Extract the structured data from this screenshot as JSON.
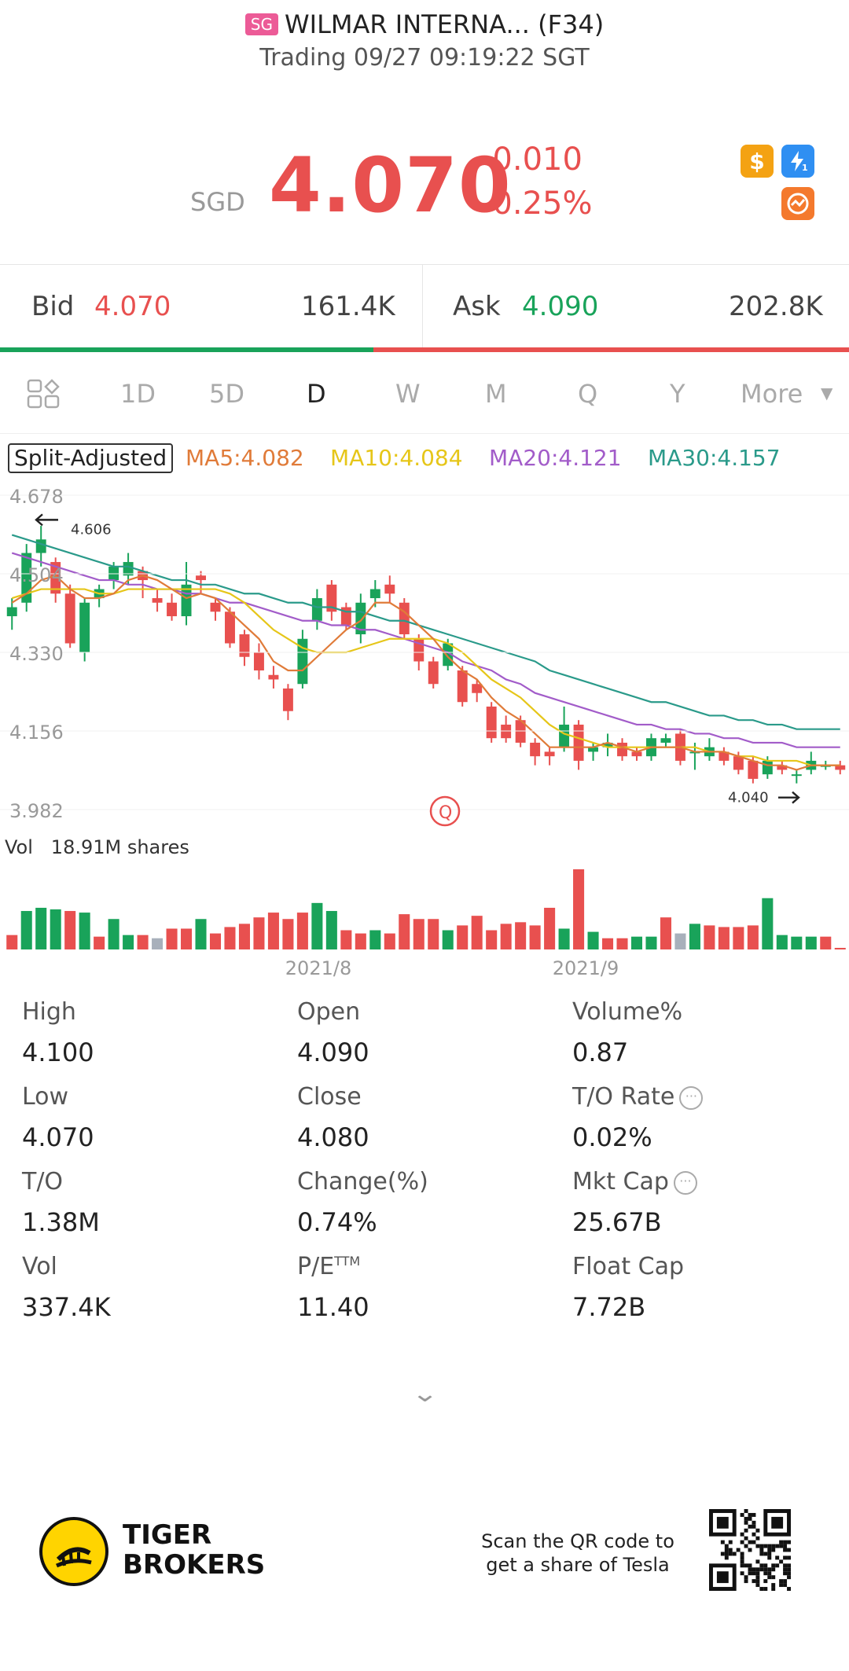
{
  "header": {
    "market_badge": "SG",
    "stock_name": "WILMAR INTERNA... (F34)",
    "status_line": "Trading 09/27 09:19:22 SGT"
  },
  "quote": {
    "currency": "SGD",
    "price": "4.070",
    "change": "-0.010",
    "change_pct": "-0.25%",
    "price_color": "#e8504f",
    "icons": [
      "dollar-icon",
      "lightning-icon",
      "trend-icon"
    ]
  },
  "bidask": {
    "bid_label": "Bid",
    "bid_price": "4.070",
    "bid_size": "161.4K",
    "ask_label": "Ask",
    "ask_price": "4.090",
    "ask_size": "202.8K",
    "bid_ratio": 0.44,
    "up_color": "#19a35a",
    "down_color": "#e8504f"
  },
  "tabs": {
    "items": [
      "1D",
      "5D",
      "D",
      "W",
      "M",
      "Q",
      "Y"
    ],
    "active": "D",
    "more_label": "More"
  },
  "indicators": {
    "split_adjusted": "Split-Adjusted",
    "ma5": "MA5:4.082",
    "ma10": "MA10:4.084",
    "ma20": "MA20:4.121",
    "ma30": "MA30:4.157",
    "ma5_color": "#e07b39",
    "ma10_color": "#e6c619",
    "ma20_color": "#a25cc9",
    "ma30_color": "#2a9a8a"
  },
  "chart_data": {
    "type": "candlestick",
    "y_ticks": [
      "4.678",
      "4.504",
      "4.330",
      "4.156",
      "3.982"
    ],
    "ylim": [
      3.982,
      4.678
    ],
    "x_ticks": [
      "2021/8",
      "2021/9"
    ],
    "high_marker": "4.606",
    "low_marker": "4.040",
    "candles": [
      {
        "o": 4.41,
        "c": 4.43,
        "h": 4.45,
        "l": 4.38
      },
      {
        "o": 4.44,
        "c": 4.55,
        "h": 4.57,
        "l": 4.42
      },
      {
        "o": 4.55,
        "c": 4.58,
        "h": 4.61,
        "l": 4.52
      },
      {
        "o": 4.53,
        "c": 4.46,
        "h": 4.54,
        "l": 4.44
      },
      {
        "o": 4.46,
        "c": 4.35,
        "h": 4.48,
        "l": 4.34
      },
      {
        "o": 4.33,
        "c": 4.44,
        "h": 4.45,
        "l": 4.31
      },
      {
        "o": 4.45,
        "c": 4.47,
        "h": 4.48,
        "l": 4.43
      },
      {
        "o": 4.49,
        "c": 4.52,
        "h": 4.53,
        "l": 4.47
      },
      {
        "o": 4.5,
        "c": 4.53,
        "h": 4.55,
        "l": 4.48
      },
      {
        "o": 4.51,
        "c": 4.49,
        "h": 4.52,
        "l": 4.45
      },
      {
        "o": 4.45,
        "c": 4.44,
        "h": 4.47,
        "l": 4.42
      },
      {
        "o": 4.44,
        "c": 4.41,
        "h": 4.46,
        "l": 4.4
      },
      {
        "o": 4.41,
        "c": 4.48,
        "h": 4.53,
        "l": 4.39
      },
      {
        "o": 4.5,
        "c": 4.49,
        "h": 4.51,
        "l": 4.46
      },
      {
        "o": 4.44,
        "c": 4.42,
        "h": 4.45,
        "l": 4.4
      },
      {
        "o": 4.42,
        "c": 4.35,
        "h": 4.43,
        "l": 4.34
      },
      {
        "o": 4.37,
        "c": 4.32,
        "h": 4.38,
        "l": 4.3
      },
      {
        "o": 4.33,
        "c": 4.29,
        "h": 4.35,
        "l": 4.27
      },
      {
        "o": 4.28,
        "c": 4.27,
        "h": 4.3,
        "l": 4.25
      },
      {
        "o": 4.25,
        "c": 4.2,
        "h": 4.26,
        "l": 4.18
      },
      {
        "o": 4.26,
        "c": 4.36,
        "h": 4.38,
        "l": 4.25
      },
      {
        "o": 4.4,
        "c": 4.45,
        "h": 4.47,
        "l": 4.38
      },
      {
        "o": 4.48,
        "c": 4.42,
        "h": 4.49,
        "l": 4.4
      },
      {
        "o": 4.43,
        "c": 4.39,
        "h": 4.44,
        "l": 4.38
      },
      {
        "o": 4.37,
        "c": 4.44,
        "h": 4.46,
        "l": 4.35
      },
      {
        "o": 4.45,
        "c": 4.47,
        "h": 4.49,
        "l": 4.43
      },
      {
        "o": 4.48,
        "c": 4.46,
        "h": 4.5,
        "l": 4.44
      },
      {
        "o": 4.44,
        "c": 4.37,
        "h": 4.45,
        "l": 4.36
      },
      {
        "o": 4.36,
        "c": 4.31,
        "h": 4.37,
        "l": 4.29
      },
      {
        "o": 4.31,
        "c": 4.26,
        "h": 4.32,
        "l": 4.25
      },
      {
        "o": 4.3,
        "c": 4.35,
        "h": 4.36,
        "l": 4.29
      },
      {
        "o": 4.29,
        "c": 4.22,
        "h": 4.3,
        "l": 4.21
      },
      {
        "o": 4.26,
        "c": 4.24,
        "h": 4.27,
        "l": 4.22
      },
      {
        "o": 4.21,
        "c": 4.14,
        "h": 4.22,
        "l": 4.13
      },
      {
        "o": 4.17,
        "c": 4.14,
        "h": 4.19,
        "l": 4.13
      },
      {
        "o": 4.18,
        "c": 4.13,
        "h": 4.19,
        "l": 4.12
      },
      {
        "o": 4.13,
        "c": 4.1,
        "h": 4.14,
        "l": 4.08
      },
      {
        "o": 4.11,
        "c": 4.1,
        "h": 4.12,
        "l": 4.08
      },
      {
        "o": 4.12,
        "c": 4.17,
        "h": 4.21,
        "l": 4.11
      },
      {
        "o": 4.17,
        "c": 4.09,
        "h": 4.18,
        "l": 4.07
      },
      {
        "o": 4.11,
        "c": 4.12,
        "h": 4.13,
        "l": 4.09
      },
      {
        "o": 4.12,
        "c": 4.13,
        "h": 4.15,
        "l": 4.1
      },
      {
        "o": 4.13,
        "c": 4.1,
        "h": 4.14,
        "l": 4.09
      },
      {
        "o": 4.11,
        "c": 4.1,
        "h": 4.12,
        "l": 4.09
      },
      {
        "o": 4.1,
        "c": 4.14,
        "h": 4.15,
        "l": 4.09
      },
      {
        "o": 4.13,
        "c": 4.14,
        "h": 4.15,
        "l": 4.12
      },
      {
        "o": 4.15,
        "c": 4.09,
        "h": 4.16,
        "l": 4.08
      },
      {
        "o": 4.11,
        "c": 4.11,
        "h": 4.13,
        "l": 4.07
      },
      {
        "o": 4.1,
        "c": 4.12,
        "h": 4.14,
        "l": 4.09
      },
      {
        "o": 4.11,
        "c": 4.09,
        "h": 4.12,
        "l": 4.08
      },
      {
        "o": 4.1,
        "c": 4.07,
        "h": 4.11,
        "l": 4.06
      },
      {
        "o": 4.09,
        "c": 4.05,
        "h": 4.1,
        "l": 4.04
      },
      {
        "o": 4.06,
        "c": 4.09,
        "h": 4.1,
        "l": 4.05
      },
      {
        "o": 4.08,
        "c": 4.07,
        "h": 4.09,
        "l": 4.06
      },
      {
        "o": 4.06,
        "c": 4.06,
        "h": 4.07,
        "l": 4.04
      },
      {
        "o": 4.07,
        "c": 4.09,
        "h": 4.11,
        "l": 4.06
      },
      {
        "o": 4.08,
        "c": 4.08,
        "h": 4.09,
        "l": 4.07
      },
      {
        "o": 4.08,
        "c": 4.07,
        "h": 4.09,
        "l": 4.06
      }
    ],
    "ma5": [
      4.44,
      4.46,
      4.49,
      4.5,
      4.47,
      4.45,
      4.45,
      4.46,
      4.49,
      4.5,
      4.49,
      4.47,
      4.45,
      4.46,
      4.45,
      4.42,
      4.39,
      4.36,
      4.31,
      4.29,
      4.29,
      4.32,
      4.35,
      4.38,
      4.4,
      4.44,
      4.44,
      4.42,
      4.39,
      4.36,
      4.32,
      4.29,
      4.27,
      4.23,
      4.2,
      4.18,
      4.15,
      4.12,
      4.12,
      4.12,
      4.12,
      4.13,
      4.12,
      4.11,
      4.12,
      4.12,
      4.12,
      4.11,
      4.11,
      4.11,
      4.1,
      4.09,
      4.08,
      4.08,
      4.07,
      4.08,
      4.08,
      4.08
    ],
    "ma10": [
      4.45,
      4.46,
      4.47,
      4.47,
      4.47,
      4.47,
      4.46,
      4.46,
      4.47,
      4.47,
      4.47,
      4.47,
      4.47,
      4.47,
      4.47,
      4.46,
      4.44,
      4.41,
      4.38,
      4.36,
      4.34,
      4.33,
      4.33,
      4.33,
      4.34,
      4.35,
      4.36,
      4.36,
      4.36,
      4.36,
      4.35,
      4.33,
      4.3,
      4.27,
      4.25,
      4.23,
      4.2,
      4.17,
      4.15,
      4.14,
      4.13,
      4.12,
      4.12,
      4.12,
      4.12,
      4.12,
      4.12,
      4.12,
      4.11,
      4.11,
      4.1,
      4.1,
      4.09,
      4.09,
      4.09,
      4.08,
      4.08,
      4.08
    ],
    "ma20": [
      4.55,
      4.54,
      4.53,
      4.52,
      4.51,
      4.5,
      4.49,
      4.49,
      4.48,
      4.48,
      4.47,
      4.47,
      4.46,
      4.46,
      4.45,
      4.44,
      4.44,
      4.43,
      4.42,
      4.41,
      4.4,
      4.4,
      4.39,
      4.39,
      4.38,
      4.38,
      4.37,
      4.36,
      4.35,
      4.34,
      4.33,
      4.31,
      4.3,
      4.29,
      4.27,
      4.26,
      4.24,
      4.23,
      4.22,
      4.21,
      4.2,
      4.19,
      4.18,
      4.17,
      4.17,
      4.16,
      4.16,
      4.15,
      4.15,
      4.14,
      4.14,
      4.13,
      4.13,
      4.13,
      4.12,
      4.12,
      4.12,
      4.12
    ],
    "ma30": [
      4.59,
      4.58,
      4.57,
      4.56,
      4.55,
      4.54,
      4.53,
      4.52,
      4.52,
      4.51,
      4.5,
      4.49,
      4.49,
      4.48,
      4.48,
      4.47,
      4.46,
      4.46,
      4.45,
      4.44,
      4.44,
      4.43,
      4.43,
      4.42,
      4.42,
      4.41,
      4.4,
      4.4,
      4.39,
      4.38,
      4.37,
      4.36,
      4.35,
      4.34,
      4.33,
      4.32,
      4.31,
      4.29,
      4.28,
      4.27,
      4.26,
      4.25,
      4.24,
      4.23,
      4.22,
      4.22,
      4.21,
      4.2,
      4.19,
      4.19,
      4.18,
      4.18,
      4.17,
      4.17,
      4.16,
      4.16,
      4.16,
      4.16
    ],
    "volume_label": "Vol",
    "volume_total": "18.91M shares",
    "volume": [
      {
        "v": 0.18,
        "d": "down"
      },
      {
        "v": 0.48,
        "d": "up"
      },
      {
        "v": 0.52,
        "d": "up"
      },
      {
        "v": 0.5,
        "d": "up"
      },
      {
        "v": 0.48,
        "d": "down"
      },
      {
        "v": 0.46,
        "d": "up"
      },
      {
        "v": 0.16,
        "d": "down"
      },
      {
        "v": 0.38,
        "d": "up"
      },
      {
        "v": 0.18,
        "d": "up"
      },
      {
        "v": 0.18,
        "d": "down"
      },
      {
        "v": 0.14,
        "d": "flat"
      },
      {
        "v": 0.26,
        "d": "down"
      },
      {
        "v": 0.26,
        "d": "down"
      },
      {
        "v": 0.38,
        "d": "up"
      },
      {
        "v": 0.2,
        "d": "down"
      },
      {
        "v": 0.28,
        "d": "down"
      },
      {
        "v": 0.32,
        "d": "down"
      },
      {
        "v": 0.4,
        "d": "down"
      },
      {
        "v": 0.46,
        "d": "down"
      },
      {
        "v": 0.38,
        "d": "down"
      },
      {
        "v": 0.46,
        "d": "down"
      },
      {
        "v": 0.58,
        "d": "up"
      },
      {
        "v": 0.48,
        "d": "up"
      },
      {
        "v": 0.24,
        "d": "down"
      },
      {
        "v": 0.2,
        "d": "down"
      },
      {
        "v": 0.24,
        "d": "up"
      },
      {
        "v": 0.2,
        "d": "down"
      },
      {
        "v": 0.44,
        "d": "down"
      },
      {
        "v": 0.38,
        "d": "down"
      },
      {
        "v": 0.38,
        "d": "down"
      },
      {
        "v": 0.24,
        "d": "up"
      },
      {
        "v": 0.3,
        "d": "down"
      },
      {
        "v": 0.42,
        "d": "down"
      },
      {
        "v": 0.24,
        "d": "down"
      },
      {
        "v": 0.32,
        "d": "down"
      },
      {
        "v": 0.34,
        "d": "down"
      },
      {
        "v": 0.3,
        "d": "down"
      },
      {
        "v": 0.52,
        "d": "down"
      },
      {
        "v": 0.26,
        "d": "up"
      },
      {
        "v": 1.0,
        "d": "down"
      },
      {
        "v": 0.22,
        "d": "up"
      },
      {
        "v": 0.14,
        "d": "down"
      },
      {
        "v": 0.14,
        "d": "down"
      },
      {
        "v": 0.16,
        "d": "up"
      },
      {
        "v": 0.16,
        "d": "up"
      },
      {
        "v": 0.4,
        "d": "down"
      },
      {
        "v": 0.2,
        "d": "flat"
      },
      {
        "v": 0.32,
        "d": "up"
      },
      {
        "v": 0.3,
        "d": "down"
      },
      {
        "v": 0.28,
        "d": "down"
      },
      {
        "v": 0.28,
        "d": "down"
      },
      {
        "v": 0.3,
        "d": "down"
      },
      {
        "v": 0.64,
        "d": "up"
      },
      {
        "v": 0.18,
        "d": "up"
      },
      {
        "v": 0.16,
        "d": "up"
      },
      {
        "v": 0.16,
        "d": "up"
      },
      {
        "v": 0.16,
        "d": "down"
      },
      {
        "v": 0.02,
        "d": "down"
      }
    ]
  },
  "stats": [
    {
      "label": "High",
      "value": "4.100"
    },
    {
      "label": "Open",
      "value": "4.090"
    },
    {
      "label": "Volume%",
      "value": "0.87"
    },
    {
      "label": "Low",
      "value": "4.070"
    },
    {
      "label": "Close",
      "value": "4.080"
    },
    {
      "label": "T/O Rate",
      "value": "0.02%",
      "info": true
    },
    {
      "label": "T/O",
      "value": "1.38M"
    },
    {
      "label": "Change(%)",
      "value": "0.74%"
    },
    {
      "label": "Mkt Cap",
      "value": "25.67B",
      "info": true
    },
    {
      "label": "Vol",
      "value": "337.4K"
    },
    {
      "label": "P/E",
      "sup": "TTM",
      "value": "11.40"
    },
    {
      "label": "Float Cap",
      "value": "7.72B"
    }
  ],
  "footer": {
    "brand_line1": "TIGER",
    "brand_line2": "BROKERS",
    "scan_line1": "Scan the QR code to",
    "scan_line2": "get a share of Tesla"
  }
}
